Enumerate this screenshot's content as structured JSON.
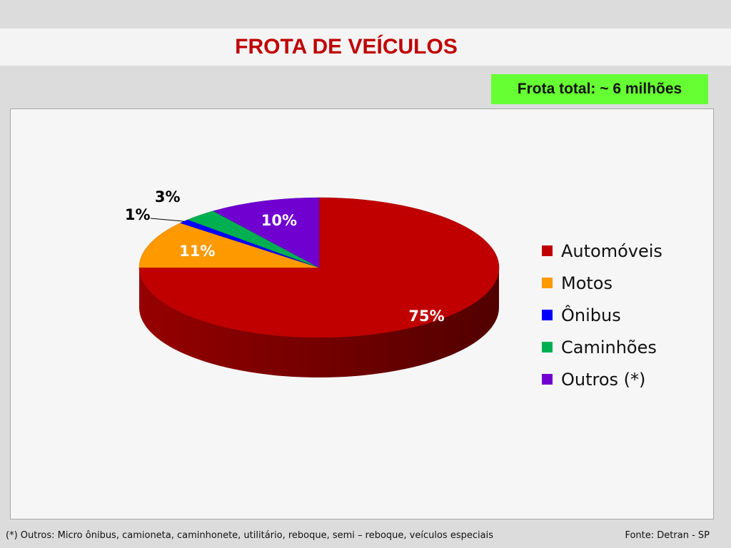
{
  "page": {
    "title": "FROTA DE VEÍCULOS",
    "fleet_total": "Frota total: ~ 6 milhões",
    "footnote": "(*) Outros: Micro ônibus, camioneta, caminhonete, utilitário, reboque, semi – reboque, veículos especiais",
    "source": "Fonte: Detran - SP"
  },
  "chart_data": {
    "type": "pie",
    "title": "",
    "categories": [
      "Automóveis",
      "Motos",
      "Ônibus",
      "Caminhões",
      "Outros (*)"
    ],
    "values": [
      75,
      11,
      1,
      3,
      10
    ],
    "labels": [
      "75%",
      "11%",
      "1%",
      "3%",
      "10%"
    ],
    "colors": [
      "#c00000",
      "#ff9900",
      "#0000ff",
      "#00b050",
      "#7000d0"
    ],
    "style": "3d-tilted",
    "legend_position": "right"
  },
  "colors": {
    "title": "#c00000",
    "badge_background": "#66ff33"
  }
}
